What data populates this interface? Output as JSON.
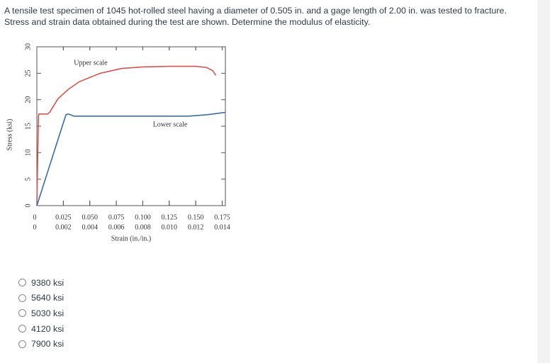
{
  "question": [
    "A tensile test specimen of 1045 hot-rolled steel having a diameter of 0.505 in. and a gage length of 2.00 in. was tested to fracture.",
    "Stress and strain data obtained during the test are shown. Determine the modulus of elasticity."
  ],
  "chart_data": {
    "type": "line",
    "y_label": "Stress (ksi)",
    "x_label": "Strain (in./in.)",
    "ylim": [
      0,
      30
    ],
    "yticks": [
      0,
      5,
      10,
      15,
      20,
      25,
      30
    ],
    "xlim": [
      0,
      0.178
    ],
    "xticks": [
      0,
      0.025,
      {
        "value": 0.05,
        "label": "0.050"
      },
      0.075,
      {
        "value": 0.1,
        "label": "0.100"
      },
      0.125,
      {
        "value": 0.15,
        "label": "0.150"
      },
      0.175
    ],
    "x2lim": [
      0,
      0.01424
    ],
    "x2ticks": [
      0,
      0.002,
      0.004,
      0.006,
      0.008,
      {
        "value": 0.01,
        "label": "0.010"
      },
      0.012,
      0.014
    ],
    "series": [
      {
        "name": "Upper scale",
        "color": "#d9534f",
        "axis": "x",
        "x": [
          0,
          0.0015,
          0.002,
          0.01,
          0.012,
          0.02,
          0.03,
          0.04,
          0.06,
          0.08,
          0.1,
          0.125,
          0.15,
          0.16,
          0.166,
          0.169
        ],
        "values": [
          0,
          16.9,
          17.3,
          17.3,
          17.6,
          20.2,
          22.0,
          23.4,
          25.0,
          25.9,
          26.2,
          26.3,
          26.3,
          26.1,
          25.5,
          24.6
        ]
      },
      {
        "name": "Lower scale",
        "color": "#3b6ea8",
        "axis": "x2",
        "x": [
          0,
          0.0022,
          0.0024,
          0.0028,
          0.004,
          0.008,
          0.0115,
          0.013,
          0.0142
        ],
        "values": [
          0,
          17.2,
          17.3,
          16.9,
          16.9,
          16.9,
          16.9,
          17.2,
          17.6
        ]
      }
    ]
  },
  "options": [
    "9380 ksi",
    "5640 ksi",
    "5030 ksi",
    "4120 ksi",
    "7900 ksi"
  ]
}
